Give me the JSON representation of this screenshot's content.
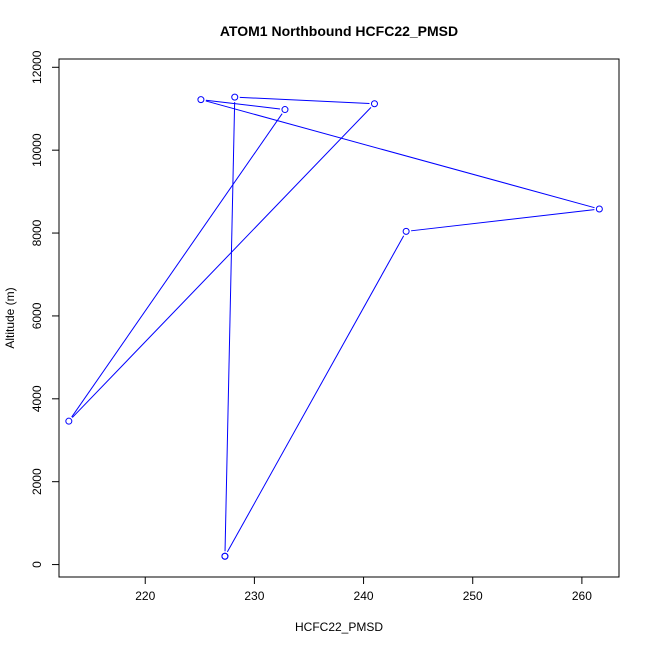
{
  "chart_data": {
    "type": "line",
    "title": "ATOM1 Northbound HCFC22_PMSD",
    "xlabel": "HCFC22_PMSD",
    "ylabel": "Altitude (m)",
    "xlim": [
      212.1,
      263.4
    ],
    "ylim": [
      -300,
      12200
    ],
    "x_ticks": [
      220,
      230,
      240,
      250,
      260
    ],
    "y_ticks": [
      0,
      2000,
      4000,
      6000,
      8000,
      10000,
      12000
    ],
    "grid": false,
    "series": [
      {
        "color": "#0000ff",
        "marker": "open-circle",
        "points": [
          {
            "x": 227.3,
            "y": 200
          },
          {
            "x": 243.9,
            "y": 8040
          },
          {
            "x": 261.6,
            "y": 8580
          },
          {
            "x": 225.1,
            "y": 11220
          },
          {
            "x": 232.8,
            "y": 10980
          },
          {
            "x": 213.0,
            "y": 3460
          },
          {
            "x": 241.0,
            "y": 11120
          },
          {
            "x": 228.2,
            "y": 11280
          },
          {
            "x": 227.3,
            "y": 200
          }
        ]
      }
    ]
  }
}
